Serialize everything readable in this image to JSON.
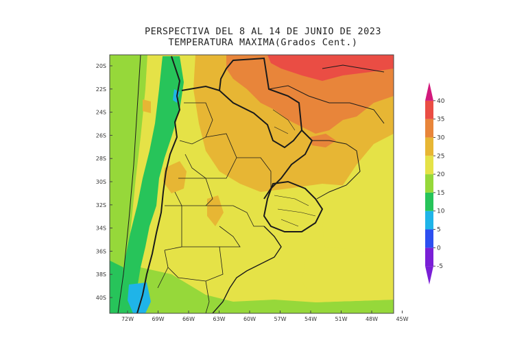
{
  "title": {
    "line1": "PERSPECTIVA DEL 8 AL 14 DE JUNIO DE 2023",
    "line2": "TEMPERATURA MAXIMA(Grados Cent.)"
  },
  "map": {
    "region": "Southern South America (Argentina, Uruguay, Paraguay, southern Brazil, Chile)",
    "lat_labels": [
      "20S",
      "22S",
      "24S",
      "26S",
      "28S",
      "30S",
      "32S",
      "34S",
      "36S",
      "38S",
      "40S"
    ],
    "lon_labels": [
      "72W",
      "69W",
      "66W",
      "63W",
      "60W",
      "57W",
      "54W",
      "51W",
      "48W",
      "45W"
    ]
  },
  "colorbar": {
    "unit": "Grados Cent.",
    "ticks": [
      "40",
      "35",
      "30",
      "25",
      "20",
      "15",
      "10",
      "5",
      "0",
      "-5"
    ],
    "bands": [
      {
        "from": -5,
        "to": 0,
        "color": "#7a1fd6"
      },
      {
        "from": 0,
        "to": 5,
        "color": "#2d4ff0"
      },
      {
        "from": 5,
        "to": 10,
        "color": "#1fb4e8"
      },
      {
        "from": 10,
        "to": 15,
        "color": "#27c45a"
      },
      {
        "from": 15,
        "to": 20,
        "color": "#96d83a"
      },
      {
        "from": 20,
        "to": 25,
        "color": "#e5e247"
      },
      {
        "from": 25,
        "to": 30,
        "color": "#e7b634"
      },
      {
        "from": 30,
        "to": 35,
        "color": "#e8853a"
      },
      {
        "from": 35,
        "to": 40,
        "color": "#ea4d44"
      },
      {
        "from": 40,
        "to": 45,
        "color": "#d2197c"
      }
    ]
  }
}
